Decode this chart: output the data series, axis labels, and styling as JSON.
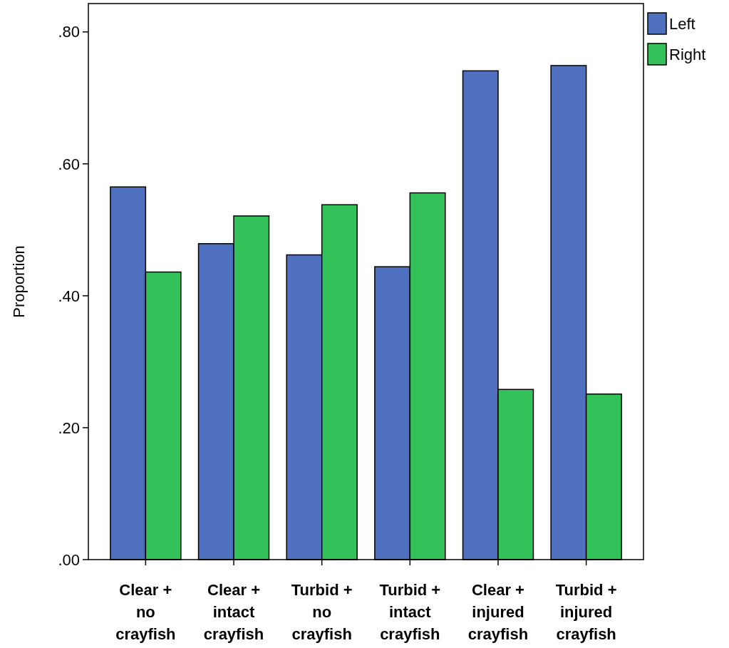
{
  "chart_data": {
    "type": "bar",
    "ylabel": "Proportion",
    "categories": [
      "Clear + no crayfish",
      "Clear + intact crayfish",
      "Turbid + no crayfish",
      "Turbid + intact crayfish",
      "Clear + injured crayfish",
      "Turbid + injured crayfish"
    ],
    "series": [
      {
        "name": "Left",
        "color": "#4f6fbf",
        "values": [
          0.565,
          0.479,
          0.462,
          0.444,
          0.741,
          0.749
        ]
      },
      {
        "name": "Right",
        "color": "#33c15a",
        "values": [
          0.436,
          0.521,
          0.538,
          0.556,
          0.258,
          0.251
        ]
      }
    ],
    "ylim": [
      0,
      0.843
    ],
    "yticks": [
      {
        "value": 0,
        "label": ".00"
      },
      {
        "value": 0.2,
        "label": ".20"
      },
      {
        "value": 0.4,
        "label": ".40"
      },
      {
        "value": 0.6,
        "label": ".60"
      },
      {
        "value": 0.8,
        "label": ".80"
      }
    ],
    "grid": false,
    "legend": "top right"
  }
}
